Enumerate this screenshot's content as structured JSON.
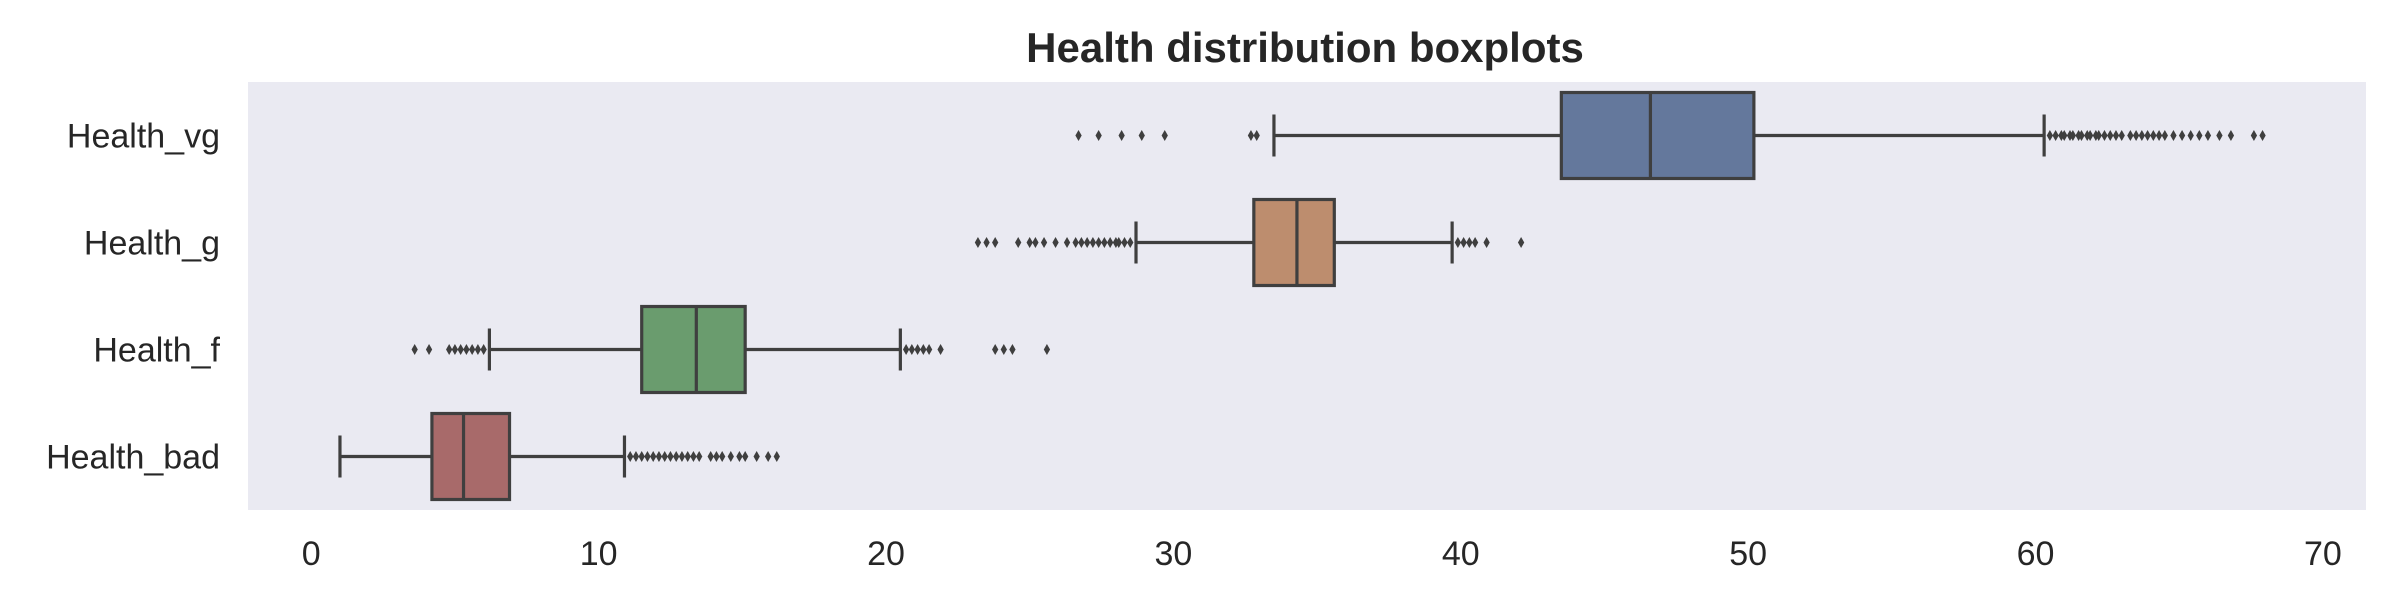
{
  "chart_data": {
    "type": "boxplot",
    "orientation": "horizontal",
    "title": "Health distribution boxplots",
    "xlabel": "",
    "ylabel": "",
    "xlim": [
      -2.2,
      71.5
    ],
    "xticks": [
      0,
      10,
      20,
      30,
      40,
      50,
      60,
      70
    ],
    "grid": false,
    "background_color": "#eaeaf2",
    "line_color": "#3f3f3f",
    "categories": [
      "Health_vg",
      "Health_g",
      "Health_f",
      "Health_bad"
    ],
    "boxes": [
      {
        "category": "Health_vg",
        "color": "#64789c",
        "whisker_low": 33.5,
        "q1": 43.5,
        "median": 46.6,
        "q3": 50.2,
        "whisker_high": 60.3,
        "outliers_low": [
          26.7,
          27.4,
          28.2,
          28.9,
          29.7,
          32.7,
          32.9
        ],
        "outliers_high": [
          60.5,
          60.7,
          60.9,
          61.0,
          61.2,
          61.3,
          61.5,
          61.6,
          61.8,
          61.9,
          62.1,
          62.2,
          62.4,
          62.6,
          62.8,
          63.0,
          63.3,
          63.5,
          63.7,
          63.9,
          64.1,
          64.3,
          64.5,
          64.8,
          65.1,
          65.4,
          65.7,
          66.0,
          66.4,
          66.8,
          67.6,
          67.9
        ]
      },
      {
        "category": "Health_g",
        "color": "#bd8d6e",
        "whisker_low": 28.7,
        "q1": 32.8,
        "median": 34.3,
        "q3": 35.6,
        "whisker_high": 39.7,
        "outliers_low": [
          23.2,
          23.5,
          23.8,
          24.6,
          25.0,
          25.2,
          25.5,
          25.9,
          26.3,
          26.6,
          26.8,
          27.0,
          27.2,
          27.4,
          27.6,
          27.8,
          28.0,
          28.1,
          28.3,
          28.5
        ],
        "outliers_high": [
          39.9,
          40.1,
          40.3,
          40.5,
          40.9,
          42.1
        ]
      },
      {
        "category": "Health_f",
        "color": "#6a9c6e",
        "whisker_low": 6.2,
        "q1": 11.5,
        "median": 13.4,
        "q3": 15.1,
        "whisker_high": 20.5,
        "outliers_low": [
          3.6,
          4.1,
          4.8,
          5.0,
          5.2,
          5.4,
          5.6,
          5.8,
          6.0
        ],
        "outliers_high": [
          20.7,
          20.9,
          21.1,
          21.3,
          21.5,
          21.9,
          23.8,
          24.1,
          24.4,
          25.6
        ]
      },
      {
        "category": "Health_bad",
        "color": "#a86a6a",
        "whisker_low": 1.0,
        "q1": 4.2,
        "median": 5.3,
        "q3": 6.9,
        "whisker_high": 10.9,
        "outliers_low": [],
        "outliers_high": [
          11.1,
          11.3,
          11.5,
          11.7,
          11.9,
          12.1,
          12.3,
          12.5,
          12.7,
          12.9,
          13.1,
          13.3,
          13.5,
          13.9,
          14.1,
          14.3,
          14.6,
          14.9,
          15.1,
          15.5,
          15.9,
          16.2
        ]
      }
    ]
  }
}
